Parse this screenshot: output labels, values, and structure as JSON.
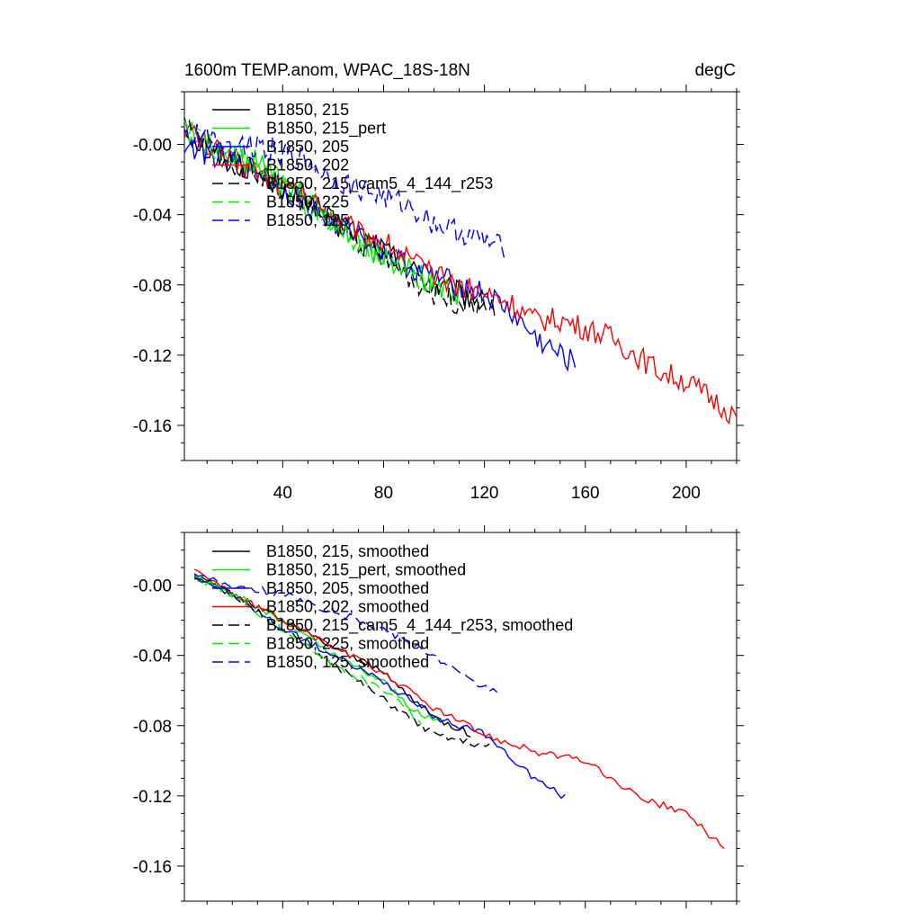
{
  "chart_data": [
    {
      "type": "line",
      "title": "1600m TEMP.anom, WPAC_18S-18N",
      "units_label": "degC",
      "xlim": [
        1,
        220
      ],
      "ylim": [
        -0.18,
        0.03
      ],
      "x_ticks": [
        40,
        80,
        120,
        160,
        200
      ],
      "x_tick_labels": [
        "40",
        "80",
        "120",
        "160",
        "200"
      ],
      "y_ticks": [
        0,
        -0.04,
        -0.08,
        -0.12,
        -0.16
      ],
      "y_tick_labels": [
        "-0.00",
        "-0.04",
        "-0.08",
        "-0.12",
        "-0.16"
      ],
      "legend_position": "top-left",
      "series": [
        {
          "name": "B1850, 215",
          "color": "#000000",
          "dash": "solid",
          "x_end": 120,
          "points": [
            [
              1,
              0.01
            ],
            [
              10,
              -0.005
            ],
            [
              20,
              -0.01
            ],
            [
              30,
              -0.015
            ],
            [
              40,
              -0.025
            ],
            [
              50,
              -0.03
            ],
            [
              60,
              -0.045
            ],
            [
              70,
              -0.05
            ],
            [
              80,
              -0.06
            ],
            [
              90,
              -0.07
            ],
            [
              100,
              -0.08
            ],
            [
              110,
              -0.085
            ],
            [
              120,
              -0.09
            ]
          ]
        },
        {
          "name": "B1850, 215_pert",
          "color": "#00ee00",
          "dash": "solid",
          "x_end": 110,
          "points": [
            [
              1,
              0.01
            ],
            [
              10,
              0.0
            ],
            [
              20,
              -0.005
            ],
            [
              30,
              -0.01
            ],
            [
              40,
              -0.02
            ],
            [
              50,
              -0.03
            ],
            [
              60,
              -0.045
            ],
            [
              70,
              -0.055
            ],
            [
              80,
              -0.065
            ],
            [
              90,
              -0.07
            ],
            [
              100,
              -0.08
            ],
            [
              110,
              -0.085
            ]
          ]
        },
        {
          "name": "B1850, 205",
          "color": "#0000ff",
          "dash": "solid",
          "x_end": 156,
          "points": [
            [
              1,
              0.0
            ],
            [
              10,
              -0.005
            ],
            [
              20,
              -0.01
            ],
            [
              30,
              -0.015
            ],
            [
              40,
              -0.025
            ],
            [
              50,
              -0.035
            ],
            [
              60,
              -0.045
            ],
            [
              70,
              -0.05
            ],
            [
              80,
              -0.06
            ],
            [
              90,
              -0.07
            ],
            [
              100,
              -0.075
            ],
            [
              110,
              -0.08
            ],
            [
              120,
              -0.085
            ],
            [
              130,
              -0.095
            ],
            [
              140,
              -0.11
            ],
            [
              150,
              -0.12
            ],
            [
              156,
              -0.125
            ]
          ]
        },
        {
          "name": "B1850, 202",
          "color": "#ff0000",
          "dash": "solid",
          "x_end": 220,
          "points": [
            [
              1,
              0.01
            ],
            [
              10,
              0.0
            ],
            [
              20,
              -0.01
            ],
            [
              30,
              -0.015
            ],
            [
              40,
              -0.025
            ],
            [
              50,
              -0.03
            ],
            [
              60,
              -0.04
            ],
            [
              70,
              -0.05
            ],
            [
              80,
              -0.055
            ],
            [
              90,
              -0.065
            ],
            [
              100,
              -0.075
            ],
            [
              110,
              -0.08
            ],
            [
              120,
              -0.085
            ],
            [
              130,
              -0.09
            ],
            [
              140,
              -0.1
            ],
            [
              150,
              -0.1
            ],
            [
              160,
              -0.105
            ],
            [
              170,
              -0.11
            ],
            [
              180,
              -0.12
            ],
            [
              190,
              -0.13
            ],
            [
              200,
              -0.135
            ],
            [
              210,
              -0.145
            ],
            [
              220,
              -0.155
            ]
          ]
        },
        {
          "name": "B1850, 215_cam5_4_144_r253",
          "color": "#000000",
          "dash": "dashed",
          "x_end": 125,
          "points": [
            [
              1,
              0.01
            ],
            [
              10,
              0.0
            ],
            [
              20,
              -0.01
            ],
            [
              30,
              -0.015
            ],
            [
              40,
              -0.025
            ],
            [
              50,
              -0.035
            ],
            [
              60,
              -0.045
            ],
            [
              70,
              -0.055
            ],
            [
              80,
              -0.065
            ],
            [
              90,
              -0.075
            ],
            [
              100,
              -0.085
            ],
            [
              110,
              -0.09
            ],
            [
              120,
              -0.09
            ],
            [
              125,
              -0.095
            ]
          ]
        },
        {
          "name": "B1850, 225",
          "color": "#00ee00",
          "dash": "dashed",
          "x_end": 100,
          "points": [
            [
              1,
              0.01
            ],
            [
              10,
              0.0
            ],
            [
              20,
              -0.005
            ],
            [
              30,
              -0.015
            ],
            [
              40,
              -0.025
            ],
            [
              50,
              -0.035
            ],
            [
              60,
              -0.045
            ],
            [
              70,
              -0.055
            ],
            [
              80,
              -0.065
            ],
            [
              90,
              -0.075
            ],
            [
              100,
              -0.08
            ]
          ]
        },
        {
          "name": "B1850, 125",
          "color": "#0000ff",
          "dash": "dashed",
          "x_end": 128,
          "points": [
            [
              1,
              0.005
            ],
            [
              10,
              0.005
            ],
            [
              20,
              0.0
            ],
            [
              30,
              0.0
            ],
            [
              40,
              -0.005
            ],
            [
              50,
              -0.01
            ],
            [
              60,
              -0.02
            ],
            [
              70,
              -0.025
            ],
            [
              80,
              -0.03
            ],
            [
              90,
              -0.035
            ],
            [
              100,
              -0.045
            ],
            [
              110,
              -0.05
            ],
            [
              120,
              -0.055
            ],
            [
              128,
              -0.06
            ]
          ]
        }
      ]
    },
    {
      "type": "line",
      "xlim": [
        1,
        220
      ],
      "ylim": [
        -0.18,
        0.03
      ],
      "x_ticks": [
        40,
        80,
        120,
        160,
        200
      ],
      "y_ticks": [
        0,
        -0.04,
        -0.08,
        -0.12,
        -0.16
      ],
      "y_tick_labels": [
        "-0.00",
        "-0.04",
        "-0.08",
        "-0.12",
        "-0.16"
      ],
      "legend_position": "top-left",
      "series": [
        {
          "name": "B1850, 215, smoothed",
          "color": "#000000",
          "dash": "solid",
          "points": [
            [
              5,
              0.005
            ],
            [
              20,
              -0.005
            ],
            [
              40,
              -0.02
            ],
            [
              60,
              -0.035
            ],
            [
              80,
              -0.05
            ],
            [
              100,
              -0.075
            ],
            [
              115,
              -0.085
            ]
          ]
        },
        {
          "name": "B1850, 215_pert, smoothed",
          "color": "#00ee00",
          "dash": "solid",
          "points": [
            [
              5,
              0.005
            ],
            [
              20,
              -0.005
            ],
            [
              40,
              -0.02
            ],
            [
              60,
              -0.04
            ],
            [
              80,
              -0.055
            ],
            [
              95,
              -0.075
            ],
            [
              105,
              -0.078
            ]
          ]
        },
        {
          "name": "B1850, 205, smoothed",
          "color": "#0000ff",
          "dash": "solid",
          "points": [
            [
              5,
              0.005
            ],
            [
              20,
              -0.005
            ],
            [
              40,
              -0.025
            ],
            [
              60,
              -0.04
            ],
            [
              80,
              -0.055
            ],
            [
              100,
              -0.075
            ],
            [
              120,
              -0.085
            ],
            [
              140,
              -0.11
            ],
            [
              153,
              -0.122
            ]
          ]
        },
        {
          "name": "B1850, 202, smoothed",
          "color": "#ff0000",
          "dash": "solid",
          "points": [
            [
              5,
              0.01
            ],
            [
              20,
              -0.005
            ],
            [
              40,
              -0.02
            ],
            [
              60,
              -0.035
            ],
            [
              80,
              -0.05
            ],
            [
              100,
              -0.07
            ],
            [
              120,
              -0.085
            ],
            [
              140,
              -0.095
            ],
            [
              160,
              -0.1
            ],
            [
              180,
              -0.12
            ],
            [
              200,
              -0.13
            ],
            [
              215,
              -0.15
            ]
          ]
        },
        {
          "name": "B1850, 215_cam5_4_144_r253, smoothed",
          "color": "#000000",
          "dash": "dashed",
          "points": [
            [
              5,
              0.005
            ],
            [
              20,
              -0.005
            ],
            [
              40,
              -0.025
            ],
            [
              60,
              -0.045
            ],
            [
              80,
              -0.065
            ],
            [
              100,
              -0.085
            ],
            [
              122,
              -0.092
            ]
          ]
        },
        {
          "name": "B1850, 225, smoothed",
          "color": "#00ee00",
          "dash": "dashed",
          "points": [
            [
              5,
              0.005
            ],
            [
              20,
              -0.005
            ],
            [
              40,
              -0.025
            ],
            [
              60,
              -0.045
            ],
            [
              80,
              -0.06
            ],
            [
              95,
              -0.078
            ]
          ]
        },
        {
          "name": "B1850, 125, smoothed",
          "color": "#0000ff",
          "dash": "dashed",
          "points": [
            [
              5,
              0.005
            ],
            [
              20,
              0.0
            ],
            [
              40,
              -0.005
            ],
            [
              60,
              -0.015
            ],
            [
              80,
              -0.025
            ],
            [
              100,
              -0.04
            ],
            [
              115,
              -0.055
            ],
            [
              125,
              -0.06
            ]
          ]
        }
      ]
    }
  ]
}
